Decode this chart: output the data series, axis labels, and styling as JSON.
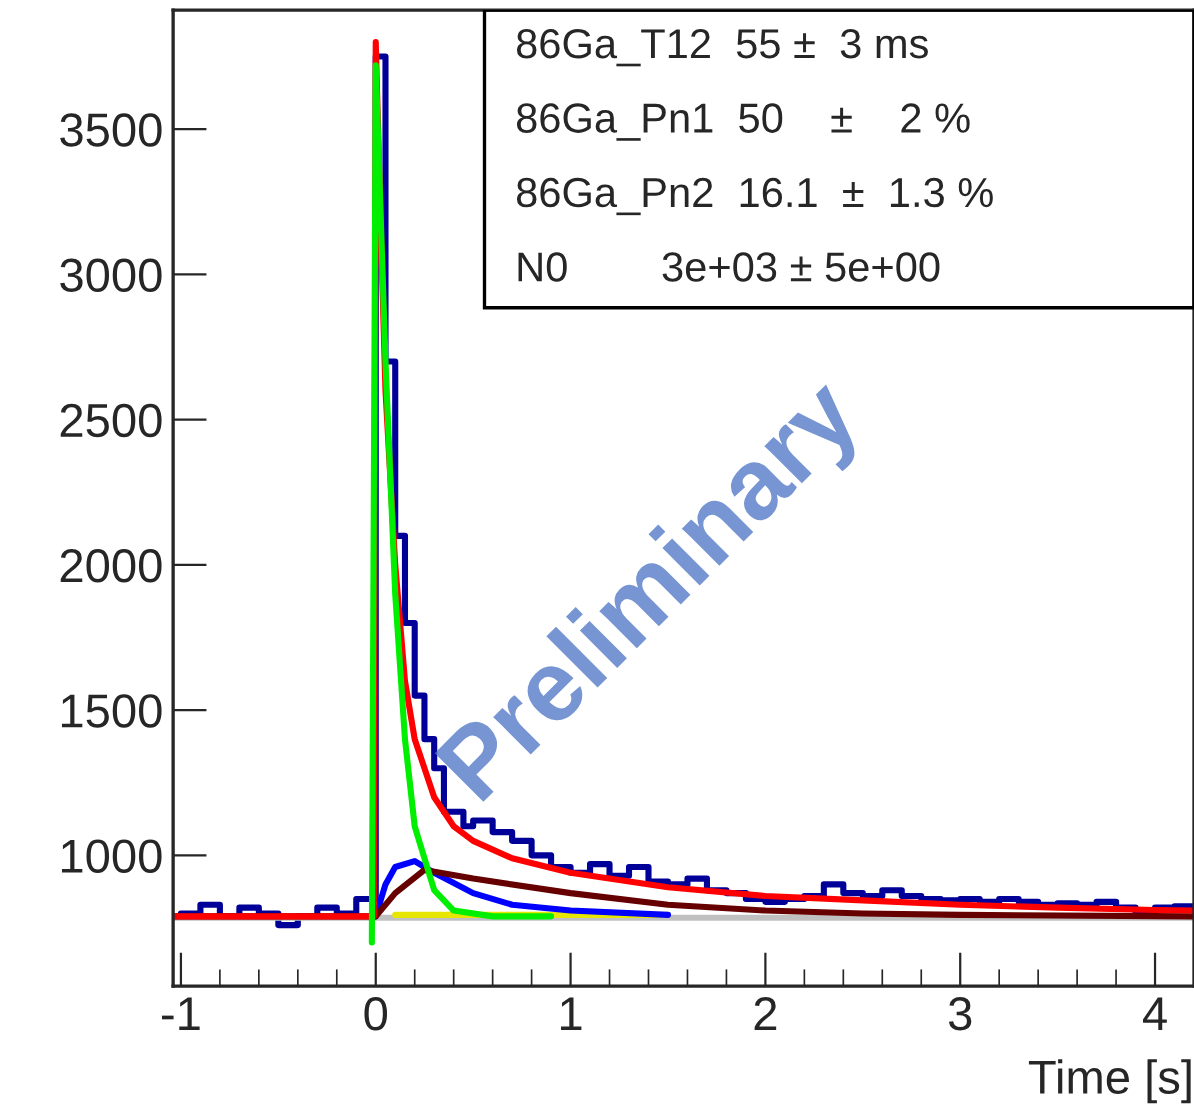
{
  "chart_data": {
    "type": "line",
    "xlabel": "Time [s]",
    "xlim": [
      -1.04,
      4.2
    ],
    "xticks": [
      -1,
      0,
      1,
      2,
      3,
      4
    ],
    "ylim": [
      550,
      3910
    ],
    "yticks": [
      1000,
      1500,
      2000,
      2500,
      3000,
      3500
    ],
    "grid": false,
    "legend": false,
    "marker": "none",
    "line_style": "solid",
    "series": [
      {
        "type": "step",
        "color": "#000099",
        "x": [
          -1.0,
          -0.9,
          -0.8,
          -0.7,
          -0.6,
          -0.5,
          -0.4,
          -0.3,
          -0.2,
          -0.1,
          0.0,
          0.05,
          0.1,
          0.15,
          0.2,
          0.25,
          0.3,
          0.35,
          0.4,
          0.45,
          0.5,
          0.6,
          0.7,
          0.8,
          0.9,
          1.0,
          1.1,
          1.2,
          1.3,
          1.4,
          1.5,
          1.6,
          1.7,
          1.8,
          1.9,
          2.0,
          2.1,
          2.2,
          2.3,
          2.4,
          2.5,
          2.6,
          2.7,
          2.8,
          2.9,
          3.0,
          3.1,
          3.2,
          3.3,
          3.4,
          3.5,
          3.6,
          3.7,
          3.8,
          3.9,
          4.0,
          4.1,
          4.2
        ],
        "values": [
          800,
          830,
          790,
          820,
          800,
          760,
          790,
          820,
          800,
          850,
          3750,
          2700,
          2100,
          1800,
          1550,
          1400,
          1300,
          1150,
          1150,
          1100,
          1120,
          1080,
          1050,
          1000,
          960,
          940,
          970,
          930,
          960,
          910,
          900,
          920,
          880,
          870,
          850,
          840,
          850,
          860,
          900,
          870,
          860,
          880,
          860,
          850,
          845,
          850,
          840,
          850,
          840,
          830,
          835,
          830,
          840,
          820,
          800,
          820,
          825,
          825
        ]
      },
      {
        "color": "#c0c0c0",
        "x": [
          -1.04,
          4.2
        ],
        "values": [
          785,
          785
        ]
      },
      {
        "color": "#e6e600",
        "x": [
          0.1,
          1.5
        ],
        "values": [
          795,
          795
        ]
      },
      {
        "color": "#0000ff",
        "x": [
          0.0,
          0.05,
          0.1,
          0.2,
          0.3,
          0.5,
          0.7,
          1.0,
          1.5
        ],
        "values": [
          790,
          900,
          960,
          980,
          940,
          870,
          830,
          810,
          795
        ]
      },
      {
        "color": "#660000",
        "x": [
          -1.04,
          0.0,
          0.1,
          0.25,
          0.5,
          1.0,
          1.5,
          2.0,
          2.5,
          3.0,
          4.2
        ],
        "values": [
          790,
          790,
          870,
          950,
          920,
          870,
          830,
          810,
          800,
          795,
          790
        ]
      },
      {
        "color": "#ff0000",
        "x": [
          -1.04,
          -0.01,
          0.0,
          0.02,
          0.05,
          0.1,
          0.15,
          0.2,
          0.3,
          0.4,
          0.5,
          0.7,
          1.0,
          1.5,
          2.0,
          2.5,
          3.0,
          3.5,
          4.0,
          4.2
        ],
        "values": [
          790,
          790,
          3800,
          3300,
          2600,
          2000,
          1600,
          1400,
          1200,
          1100,
          1050,
          990,
          940,
          890,
          860,
          845,
          830,
          820,
          812,
          810
        ]
      },
      {
        "color": "#00ee00",
        "x": [
          -0.02,
          0.0,
          0.05,
          0.1,
          0.15,
          0.2,
          0.3,
          0.4,
          0.6,
          0.9
        ],
        "values": [
          700,
          3720,
          2700,
          1900,
          1400,
          1100,
          880,
          810,
          790,
          790
        ]
      }
    ],
    "annotations": [
      "86Ga_T12  55 ±  3 ms",
      "86Ga_Pn1  50    ±    2 %",
      "86Ga_Pn2  16.1  ±  1.3 %",
      "N0        3e+03 ± 5e+00",
      "Preliminary"
    ]
  }
}
